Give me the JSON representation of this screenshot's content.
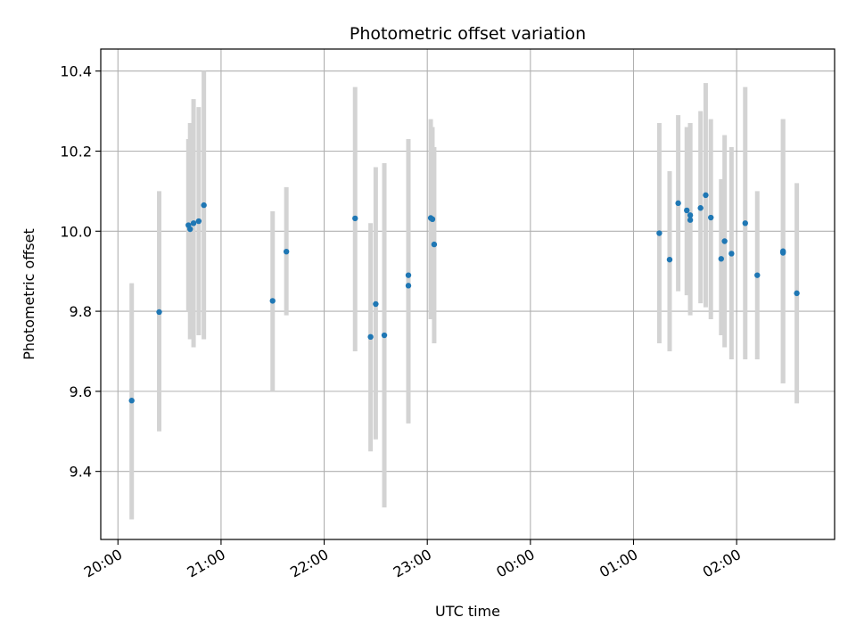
{
  "chart_data": {
    "type": "scatter",
    "title": "Photometric offset variation",
    "xlabel": "UTC time",
    "ylabel": "Photometric offset",
    "x_unit": "UTC time of day, spanning midnight",
    "xlim": [
      "19:50",
      "02:57"
    ],
    "ylim": [
      9.23,
      10.455
    ],
    "grid": true,
    "x_ticks": [
      "20:00",
      "21:00",
      "22:00",
      "23:00",
      "00:00",
      "01:00",
      "02:00"
    ],
    "y_ticks": [
      "9.4",
      "9.6",
      "9.8",
      "10.0",
      "10.2",
      "10.4"
    ],
    "colors": {
      "point": "#1f77b4",
      "errorbar": "#d3d3d3",
      "grid": "#b0b0b0"
    },
    "points": [
      {
        "x": "20:08",
        "y": 9.577,
        "ylow": 9.28,
        "yhigh": 9.87
      },
      {
        "x": "20:24",
        "y": 9.798,
        "ylow": 9.5,
        "yhigh": 10.1
      },
      {
        "x": "20:41",
        "y": 10.015,
        "ylow": 9.8,
        "yhigh": 10.23
      },
      {
        "x": "20:42",
        "y": 10.005,
        "ylow": 9.73,
        "yhigh": 10.27
      },
      {
        "x": "20:44",
        "y": 10.02,
        "ylow": 9.71,
        "yhigh": 10.33
      },
      {
        "x": "20:47",
        "y": 10.025,
        "ylow": 9.74,
        "yhigh": 10.31
      },
      {
        "x": "20:50",
        "y": 10.065,
        "ylow": 9.73,
        "yhigh": 10.4
      },
      {
        "x": "21:30",
        "y": 9.826,
        "ylow": 9.6,
        "yhigh": 10.05
      },
      {
        "x": "21:38",
        "y": 9.949,
        "ylow": 9.79,
        "yhigh": 10.11
      },
      {
        "x": "22:18",
        "y": 10.032,
        "ylow": 9.7,
        "yhigh": 10.36
      },
      {
        "x": "22:27",
        "y": 9.736,
        "ylow": 9.45,
        "yhigh": 10.02
      },
      {
        "x": "22:30",
        "y": 9.818,
        "ylow": 9.48,
        "yhigh": 10.16
      },
      {
        "x": "22:35",
        "y": 9.74,
        "ylow": 9.31,
        "yhigh": 10.17
      },
      {
        "x": "22:49",
        "y": 9.89,
        "ylow": 9.52,
        "yhigh": 10.23
      },
      {
        "x": "22:49",
        "y": 9.864,
        "ylow": 9.52,
        "yhigh": 10.23
      },
      {
        "x": "23:02",
        "y": 10.033,
        "ylow": 9.78,
        "yhigh": 10.28
      },
      {
        "x": "23:03",
        "y": 10.03,
        "ylow": 9.79,
        "yhigh": 10.26
      },
      {
        "x": "23:04",
        "y": 9.967,
        "ylow": 9.72,
        "yhigh": 10.21
      },
      {
        "x": "01:15",
        "y": 9.995,
        "ylow": 9.72,
        "yhigh": 10.27
      },
      {
        "x": "01:21",
        "y": 9.929,
        "ylow": 9.7,
        "yhigh": 10.15
      },
      {
        "x": "01:26",
        "y": 10.07,
        "ylow": 9.85,
        "yhigh": 10.29
      },
      {
        "x": "01:31",
        "y": 10.052,
        "ylow": 9.84,
        "yhigh": 10.26
      },
      {
        "x": "01:33",
        "y": 10.04,
        "ylow": 9.8,
        "yhigh": 10.27
      },
      {
        "x": "01:33",
        "y": 10.028,
        "ylow": 9.79,
        "yhigh": 10.27
      },
      {
        "x": "01:39",
        "y": 10.058,
        "ylow": 9.82,
        "yhigh": 10.3
      },
      {
        "x": "01:42",
        "y": 10.09,
        "ylow": 9.81,
        "yhigh": 10.37
      },
      {
        "x": "01:45",
        "y": 10.034,
        "ylow": 9.78,
        "yhigh": 10.28
      },
      {
        "x": "01:51",
        "y": 9.931,
        "ylow": 9.74,
        "yhigh": 10.13
      },
      {
        "x": "01:53",
        "y": 9.975,
        "ylow": 9.71,
        "yhigh": 10.24
      },
      {
        "x": "01:57",
        "y": 9.944,
        "ylow": 9.68,
        "yhigh": 10.21
      },
      {
        "x": "02:05",
        "y": 10.02,
        "ylow": 9.68,
        "yhigh": 10.36
      },
      {
        "x": "02:12",
        "y": 9.89,
        "ylow": 9.68,
        "yhigh": 10.1
      },
      {
        "x": "02:27",
        "y": 9.946,
        "ylow": 9.62,
        "yhigh": 10.28
      },
      {
        "x": "02:27",
        "y": 9.95,
        "ylow": 9.62,
        "yhigh": 10.28
      },
      {
        "x": "02:35",
        "y": 9.845,
        "ylow": 9.57,
        "yhigh": 10.12
      }
    ]
  }
}
